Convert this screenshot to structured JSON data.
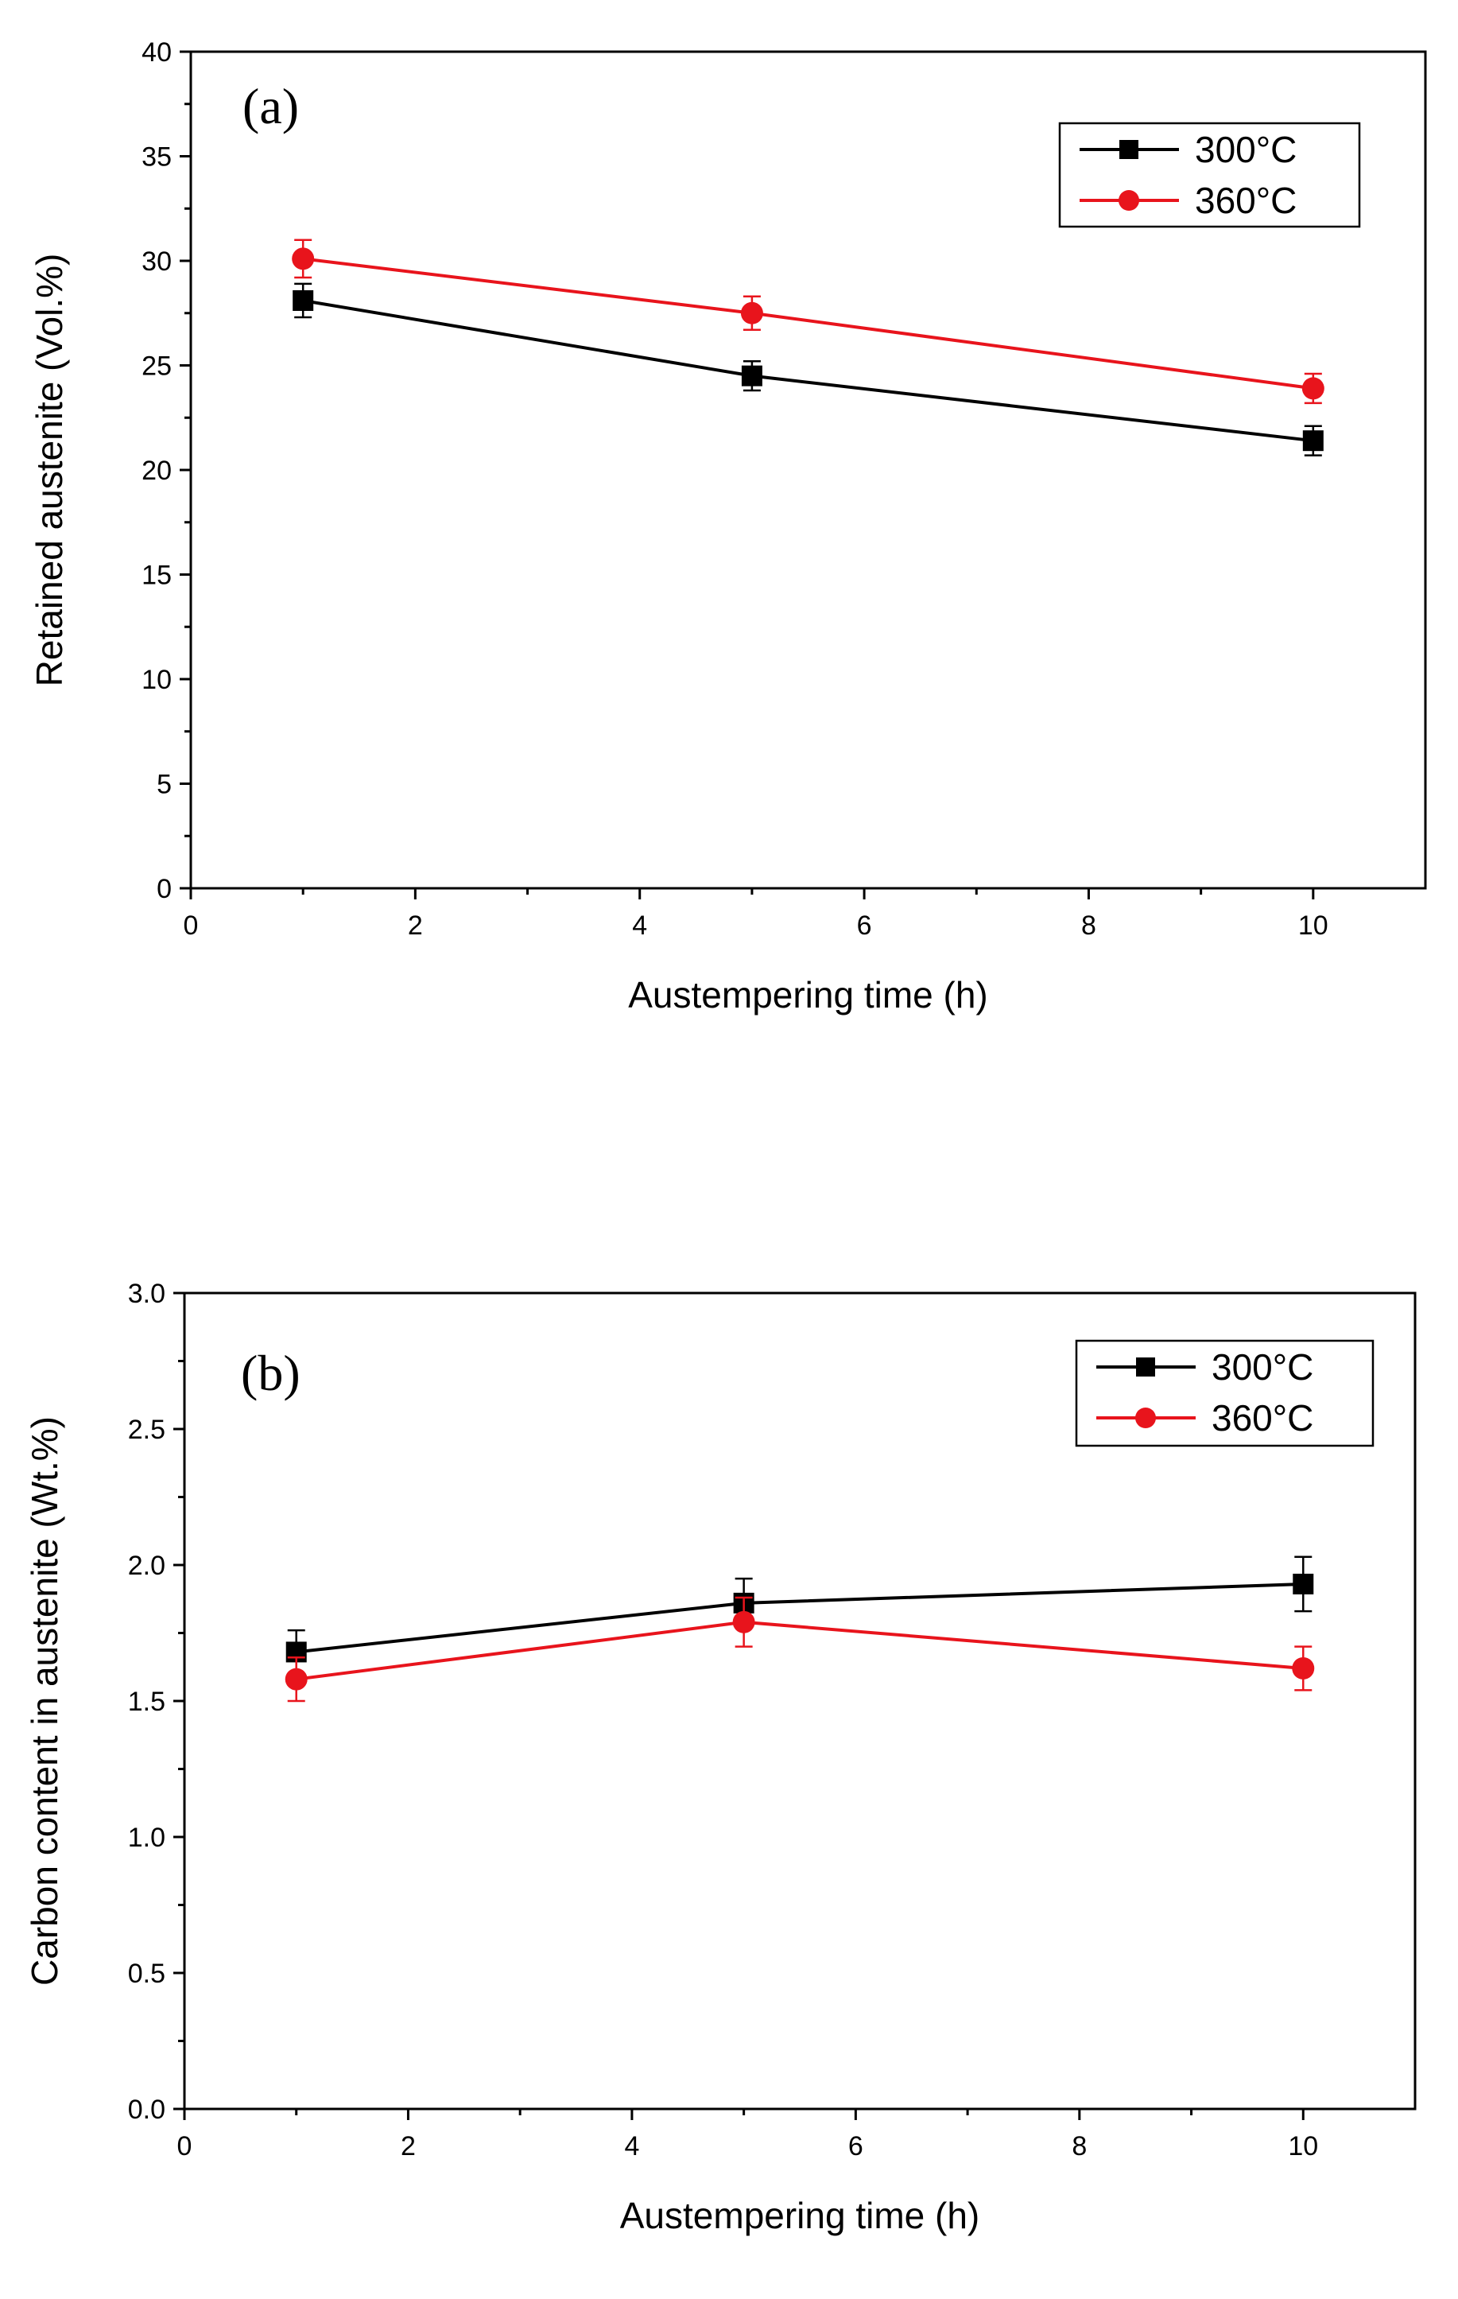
{
  "chart_data": [
    {
      "type": "line",
      "panel_label": "(a)",
      "xlabel": "Austempering time (h)",
      "ylabel": "Retained austenite (Vol.%)",
      "xlim": [
        0,
        11
      ],
      "ylim": [
        0,
        40
      ],
      "x_ticks": [
        0,
        2,
        4,
        6,
        8,
        10
      ],
      "y_ticks": [
        0,
        5,
        10,
        15,
        20,
        25,
        30,
        35,
        40
      ],
      "grid": false,
      "legend_position": "top-right",
      "series": [
        {
          "name": "300°C",
          "color": "#000000",
          "marker": "square",
          "x": [
            1,
            5,
            10
          ],
          "values": [
            28.1,
            24.5,
            21.4
          ],
          "errors": [
            0.8,
            0.7,
            0.7
          ]
        },
        {
          "name": "360°C",
          "color": "#e8141c",
          "marker": "circle",
          "x": [
            1,
            5,
            10
          ],
          "values": [
            30.1,
            27.5,
            23.9
          ],
          "errors": [
            0.9,
            0.8,
            0.7
          ]
        }
      ]
    },
    {
      "type": "line",
      "panel_label": "(b)",
      "xlabel": "Austempering time (h)",
      "ylabel": "Carbon content in austenite (Wt.%)",
      "xlim": [
        0,
        11
      ],
      "ylim": [
        0,
        3.0
      ],
      "x_ticks": [
        0,
        2,
        4,
        6,
        8,
        10
      ],
      "y_ticks": [
        0.0,
        0.5,
        1.0,
        1.5,
        2.0,
        2.5,
        3.0
      ],
      "grid": false,
      "legend_position": "top-right",
      "series": [
        {
          "name": "300°C",
          "color": "#000000",
          "marker": "square",
          "x": [
            1,
            5,
            10
          ],
          "values": [
            1.68,
            1.86,
            1.93
          ],
          "errors": [
            0.08,
            0.09,
            0.1
          ]
        },
        {
          "name": "360°C",
          "color": "#e8141c",
          "marker": "circle",
          "x": [
            1,
            5,
            10
          ],
          "values": [
            1.58,
            1.79,
            1.62
          ],
          "errors": [
            0.08,
            0.09,
            0.08
          ]
        }
      ]
    }
  ]
}
